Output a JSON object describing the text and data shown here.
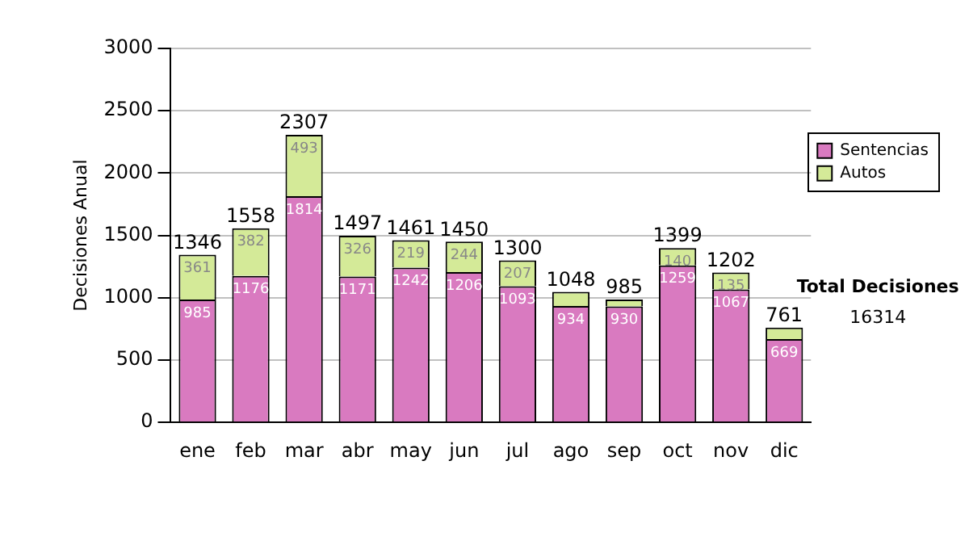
{
  "chart_data": {
    "type": "bar",
    "stacked": true,
    "ylabel": "Decisiones Anual",
    "categories": [
      "ene",
      "feb",
      "mar",
      "abr",
      "may",
      "jun",
      "jul",
      "ago",
      "sep",
      "oct",
      "nov",
      "dic"
    ],
    "series": [
      {
        "name": "Sentencias",
        "color": "#d97ac0",
        "values": [
          985,
          1176,
          1814,
          1171,
          1242,
          1206,
          1093,
          934,
          930,
          1259,
          1067,
          669
        ],
        "value_labels": [
          "985",
          "1176",
          "1814",
          "1171",
          "1242",
          "1206",
          "1093",
          "934",
          "930",
          "1259",
          "1067",
          "669"
        ]
      },
      {
        "name": "Autos",
        "color": "#d4ea98",
        "values": [
          361,
          382,
          493,
          326,
          219,
          244,
          207,
          114,
          55,
          140,
          135,
          92
        ],
        "value_labels": [
          "361",
          "382",
          "493",
          "326",
          "219",
          "244",
          "207",
          null,
          null,
          "140",
          "135",
          null
        ]
      }
    ],
    "totals": [
      "1346",
      "1558",
      "2307",
      "1497",
      "1461",
      "1450",
      "1300",
      "1048",
      "985",
      "1399",
      "1202",
      "761"
    ],
    "ylim": [
      0,
      3000
    ],
    "yticks": [
      0,
      500,
      1000,
      1500,
      2000,
      2500,
      3000
    ],
    "grid": "y",
    "legend": "right",
    "annotations": [
      "Total Decisiones",
      "16314"
    ]
  }
}
